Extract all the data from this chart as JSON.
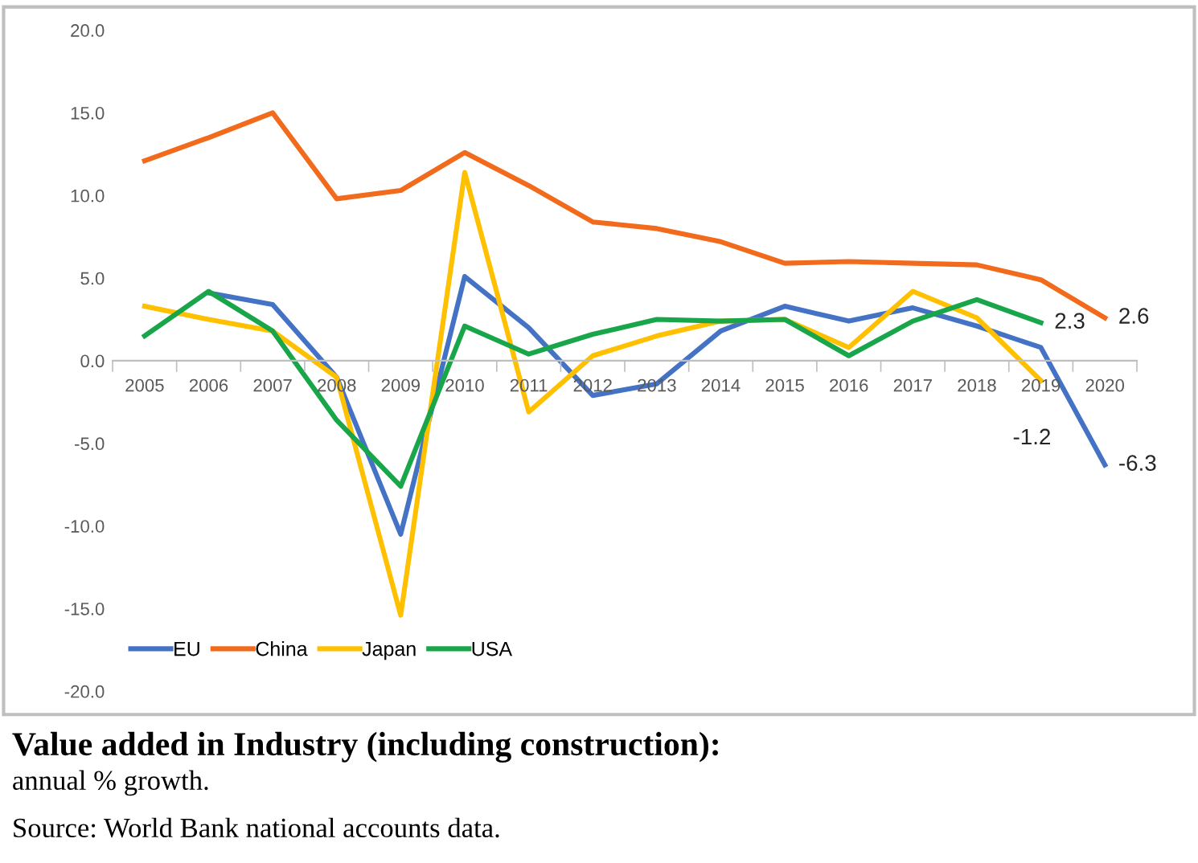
{
  "chart_data": {
    "type": "line",
    "title": "Value added in Industry (including construction):",
    "subtitle": "annual % growth.",
    "annotations": [
      "Source: World Bank national accounts data."
    ],
    "categories": [
      "2005",
      "2006",
      "2007",
      "2008",
      "2009",
      "2010",
      "2011",
      "2012",
      "2013",
      "2014",
      "2015",
      "2016",
      "2017",
      "2018",
      "2019",
      "2020"
    ],
    "series": [
      {
        "name": "EU",
        "color": "#4472c4",
        "values": [
          null,
          4.1,
          3.4,
          -1.0,
          -10.5,
          5.1,
          2.0,
          -2.1,
          -1.4,
          1.8,
          3.3,
          2.4,
          3.2,
          2.1,
          0.8,
          -6.3
        ],
        "value_labels": [
          null,
          null,
          null,
          null,
          null,
          null,
          null,
          null,
          null,
          null,
          null,
          null,
          null,
          null,
          null,
          "-6.3"
        ]
      },
      {
        "name": "China",
        "color": "#f26b1d",
        "values": [
          12.1,
          13.5,
          15.0,
          9.8,
          10.3,
          12.6,
          10.6,
          8.4,
          8.0,
          7.2,
          5.9,
          6.0,
          5.9,
          5.8,
          4.9,
          2.6
        ],
        "value_labels": [
          null,
          null,
          null,
          null,
          null,
          null,
          null,
          null,
          null,
          null,
          null,
          null,
          null,
          null,
          null,
          "2.6"
        ]
      },
      {
        "name": "Japan",
        "color": "#ffc000",
        "values": [
          3.3,
          2.5,
          1.8,
          -1.0,
          -15.4,
          11.4,
          -3.1,
          0.3,
          1.5,
          2.4,
          2.5,
          0.8,
          4.2,
          2.6,
          -1.2,
          null
        ],
        "value_labels": [
          null,
          null,
          null,
          null,
          null,
          null,
          null,
          null,
          null,
          null,
          null,
          null,
          null,
          null,
          "-1.2",
          null
        ]
      },
      {
        "name": "USA",
        "color": "#19a64a",
        "values": [
          1.5,
          4.2,
          1.8,
          -3.6,
          -7.6,
          2.1,
          0.4,
          1.6,
          2.5,
          2.4,
          2.5,
          0.3,
          2.4,
          3.7,
          2.3,
          null
        ],
        "value_labels": [
          null,
          null,
          null,
          null,
          null,
          null,
          null,
          null,
          null,
          null,
          null,
          null,
          null,
          null,
          "2.3",
          null
        ]
      }
    ],
    "ylim": [
      -20,
      20
    ],
    "yticks": [
      {
        "value": -20,
        "label": "-20.0"
      },
      {
        "value": -15,
        "label": "-15.0"
      },
      {
        "value": -10,
        "label": "-10.0"
      },
      {
        "value": -5,
        "label": "-5.0"
      },
      {
        "value": 0,
        "label": "0.0"
      },
      {
        "value": 5,
        "label": "5.0"
      },
      {
        "value": 10,
        "label": "10.0"
      },
      {
        "value": 15,
        "label": "15.0"
      },
      {
        "value": 20,
        "label": "20.0"
      }
    ],
    "grid": false,
    "legend": "bottom left",
    "marker": "none",
    "line_style": "solid"
  }
}
